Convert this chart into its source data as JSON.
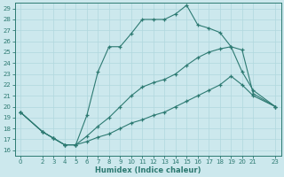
{
  "xlabel": "Humidex (Indice chaleur)",
  "xlim": [
    -0.5,
    23.5
  ],
  "ylim": [
    15.5,
    29.5
  ],
  "xticks": [
    0,
    2,
    3,
    4,
    5,
    6,
    7,
    8,
    9,
    10,
    11,
    12,
    13,
    14,
    15,
    16,
    17,
    18,
    19,
    20,
    21,
    23
  ],
  "yticks": [
    16,
    17,
    18,
    19,
    20,
    21,
    22,
    23,
    24,
    25,
    26,
    27,
    28,
    29
  ],
  "line_color": "#2d7a72",
  "bg_color": "#cce8ed",
  "grid_color": "#b0d8de",
  "line1_x": [
    0,
    2,
    3,
    4,
    5,
    6,
    7,
    8,
    9,
    10,
    11,
    12,
    13,
    14,
    15,
    16,
    17,
    18,
    19,
    20,
    21,
    23
  ],
  "line1_y": [
    19.5,
    17.7,
    17.1,
    16.5,
    16.5,
    19.2,
    23.2,
    25.5,
    25.5,
    26.7,
    28.0,
    28.0,
    28.0,
    28.5,
    29.3,
    27.5,
    27.2,
    26.8,
    25.5,
    25.2,
    21.2,
    20.0
  ],
  "line2_x": [
    0,
    2,
    3,
    4,
    5,
    6,
    7,
    8,
    9,
    10,
    11,
    12,
    13,
    14,
    15,
    16,
    17,
    18,
    19,
    20,
    21,
    23
  ],
  "line2_y": [
    19.5,
    17.7,
    17.1,
    16.5,
    16.5,
    17.3,
    18.2,
    19.0,
    20.0,
    21.0,
    21.8,
    22.2,
    22.5,
    23.0,
    23.8,
    24.5,
    25.0,
    25.3,
    25.5,
    23.2,
    21.5,
    20.0
  ],
  "line3_x": [
    0,
    2,
    3,
    4,
    5,
    6,
    7,
    8,
    9,
    10,
    11,
    12,
    13,
    14,
    15,
    16,
    17,
    18,
    19,
    20,
    21,
    23
  ],
  "line3_y": [
    19.5,
    17.7,
    17.1,
    16.5,
    16.5,
    16.8,
    17.2,
    17.5,
    18.0,
    18.5,
    18.8,
    19.2,
    19.5,
    20.0,
    20.5,
    21.0,
    21.5,
    22.0,
    22.8,
    22.0,
    21.0,
    20.0
  ]
}
